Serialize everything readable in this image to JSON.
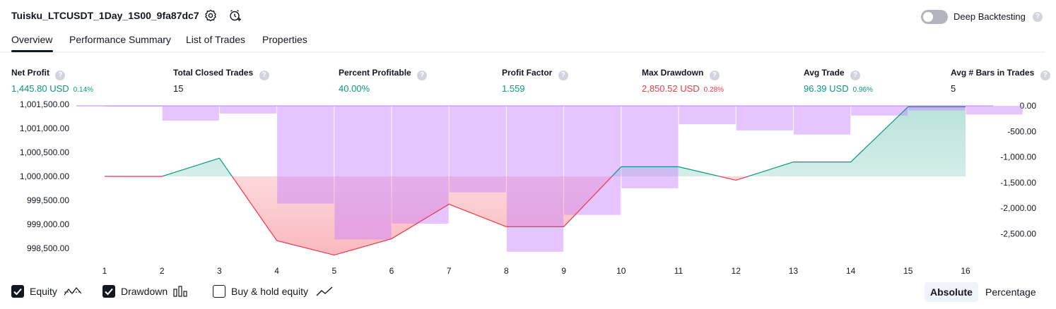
{
  "header": {
    "title": "Tuisku_LTCUSDT_1Day_1S00_9fa87dc7",
    "deep_backtesting_label": "Deep Backtesting",
    "deep_backtesting_on": false,
    "help_glyph": "?"
  },
  "tabs": [
    {
      "label": "Overview",
      "active": true
    },
    {
      "label": "Performance Summary",
      "active": false
    },
    {
      "label": "List of Trades",
      "active": false
    },
    {
      "label": "Properties",
      "active": false
    }
  ],
  "metrics": [
    {
      "label": "Net Profit",
      "value": "1,445.80 USD",
      "sub": "0.14%",
      "color": "green"
    },
    {
      "label": "Total Closed Trades",
      "value": "15",
      "sub": "",
      "color": "dark"
    },
    {
      "label": "Percent Profitable",
      "value": "40.00%",
      "sub": "",
      "color": "green"
    },
    {
      "label": "Profit Factor",
      "value": "1.559",
      "sub": "",
      "color": "green"
    },
    {
      "label": "Max Drawdown",
      "value": "2,850.52 USD",
      "sub": "0.28%",
      "color": "red"
    },
    {
      "label": "Avg Trade",
      "value": "96.39 USD",
      "sub": "0.96%",
      "color": "green"
    },
    {
      "label": "Avg # Bars in Trades",
      "value": "5",
      "sub": "",
      "color": "dark"
    }
  ],
  "chart_data": {
    "type": "line",
    "x": [
      1,
      2,
      3,
      4,
      5,
      6,
      7,
      8,
      9,
      10,
      11,
      12,
      13,
      14,
      15,
      16
    ],
    "left_ticks": [
      "1,001,500.00",
      "1,001,000.00",
      "1,000,500.00",
      "1,000,000.00",
      "999,500.00",
      "999,000.00",
      "998,500.00"
    ],
    "left_tick_values": [
      1001500,
      1001000,
      1000500,
      1000000,
      999500,
      999000,
      998500
    ],
    "right_ticks": [
      "0.00",
      "-500.00",
      "-1,000.00",
      "-1,500.00",
      "-2,000.00",
      "-2,500.00"
    ],
    "right_tick_values": [
      0,
      -500,
      -1000,
      -1500,
      -2000,
      -2500
    ],
    "baseline": 1000000,
    "series": [
      {
        "name": "Equity",
        "axis": "left",
        "values": [
          1000000,
          1000000,
          1000380,
          998660,
          998360,
          998700,
          999420,
          998950,
          998950,
          1000200,
          1000200,
          999920,
          1000300,
          1000300,
          1001450,
          1001450
        ]
      },
      {
        "name": "Drawdown",
        "axis": "right",
        "type": "bar",
        "values": [
          -10,
          -290,
          -150,
          -1910,
          -2610,
          -2300,
          -1690,
          -2850,
          -2130,
          -1610,
          -360,
          -480,
          -560,
          -190,
          -90,
          -170
        ]
      }
    ],
    "colors": {
      "equity_up": "#089981",
      "equity_down": "#f23645",
      "drawdown": "#c77dff"
    }
  },
  "legend": {
    "equity_label": "Equity",
    "equity_checked": true,
    "drawdown_label": "Drawdown",
    "drawdown_checked": true,
    "buyhold_label": "Buy & hold equity",
    "buyhold_checked": false
  },
  "scale_toggle": {
    "absolute_label": "Absolute",
    "percentage_label": "Percentage",
    "active": "Absolute"
  }
}
